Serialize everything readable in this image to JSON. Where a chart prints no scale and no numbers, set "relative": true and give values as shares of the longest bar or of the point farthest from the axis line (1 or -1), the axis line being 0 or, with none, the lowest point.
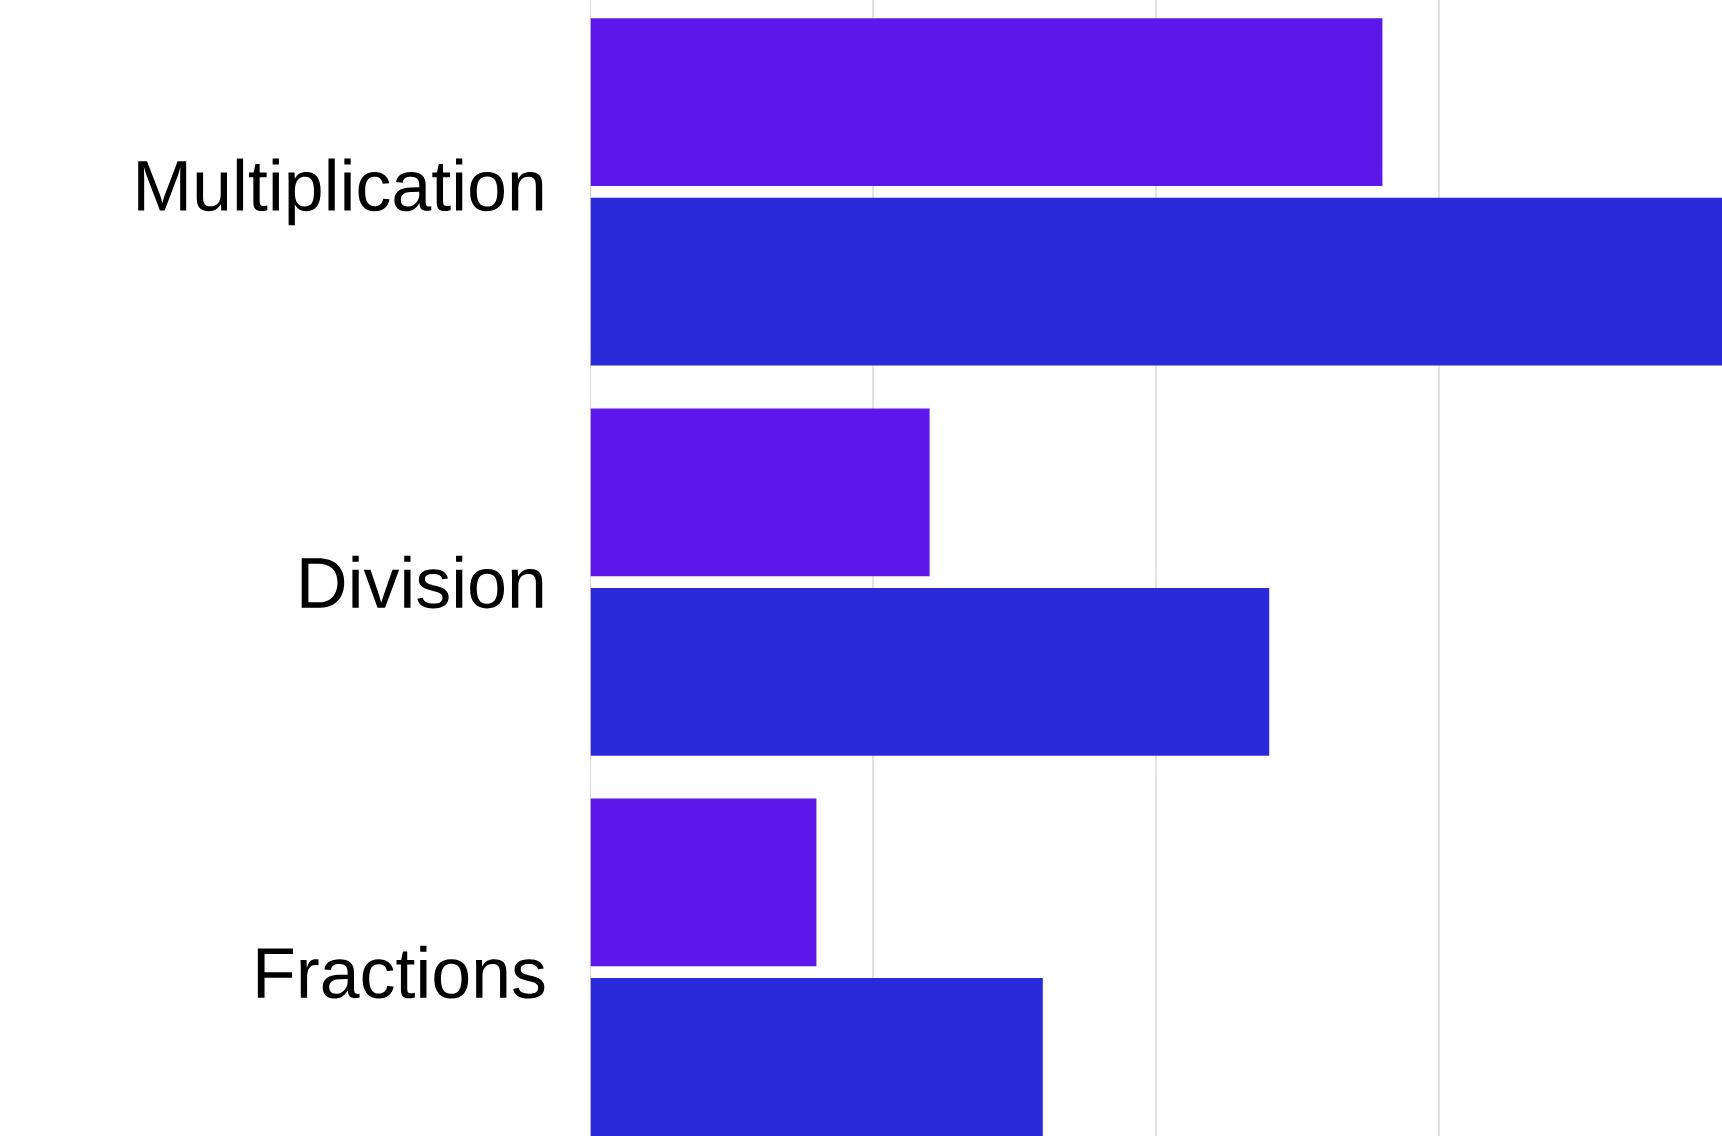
{
  "chart_data": {
    "type": "bar",
    "orientation": "horizontal",
    "relative": true,
    "grid": "x",
    "categories": [
      "Multiplication",
      "Division",
      "Fractions"
    ],
    "series": [
      {
        "color": "#5b18e8",
        "values": [
          0.7,
          0.3,
          0.2
        ]
      },
      {
        "color": "#2a2adb",
        "values": [
          1,
          0.6,
          0.4
        ]
      }
    ]
  }
}
